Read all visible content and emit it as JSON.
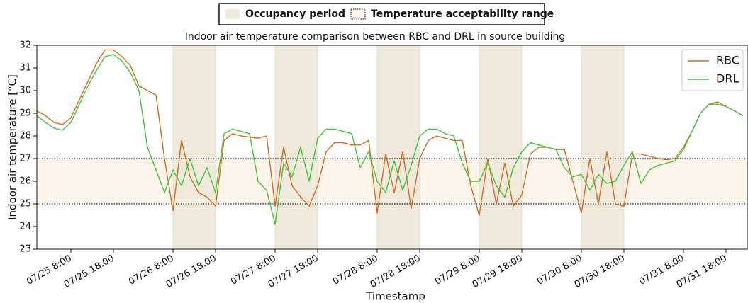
{
  "chart_data": {
    "type": "line",
    "title": "Indoor air temperature comparison between RBC and DRL in source building",
    "x_label": "Timestamp",
    "y_label": "Indoor air temperature [°C]",
    "occupancy_label": "Occupancy period",
    "range_label": "Temperature acceptability range",
    "occupancy_color": "#efeadc",
    "range_color": "#fdf5ea",
    "occupancy": [
      [
        "07/26 8:00",
        "07/26 18:00"
      ],
      [
        "07/27 8:00",
        "07/27 18:00"
      ],
      [
        "07/28 8:00",
        "07/28 18:00"
      ],
      [
        "07/29 8:00",
        "07/29 18:00"
      ],
      [
        "07/30 8:00",
        "07/30 18:00"
      ]
    ],
    "acceptability_range": [
      25,
      27
    ],
    "xlim": [
      "07/25 0:00",
      "07/31 23:00"
    ],
    "xticks": [
      "07/25 8:00",
      "07/25 18:00",
      "07/26 8:00",
      "07/26 18:00",
      "07/27 8:00",
      "07/27 18:00",
      "07/28 8:00",
      "07/28 18:00",
      "07/29 8:00",
      "07/29 18:00",
      "07/30 8:00",
      "07/30 18:00",
      "07/31 8:00",
      "07/31 18:00"
    ],
    "ylim": [
      23,
      32
    ],
    "yticks": [
      23,
      24,
      25,
      26,
      27,
      28,
      29,
      30,
      31,
      32
    ],
    "legend": "upper right",
    "x": [
      "07/25 0:00",
      "07/25 2:00",
      "07/25 4:00",
      "07/25 6:00",
      "07/25 8:00",
      "07/25 10:00",
      "07/25 12:00",
      "07/25 14:00",
      "07/25 16:00",
      "07/25 18:00",
      "07/25 20:00",
      "07/25 22:00",
      "07/26 0:00",
      "07/26 2:00",
      "07/26 4:00",
      "07/26 6:00",
      "07/26 8:00",
      "07/26 10:00",
      "07/26 12:00",
      "07/26 14:00",
      "07/26 16:00",
      "07/26 18:00",
      "07/26 20:00",
      "07/26 22:00",
      "07/27 0:00",
      "07/27 2:00",
      "07/27 4:00",
      "07/27 6:00",
      "07/27 8:00",
      "07/27 10:00",
      "07/27 12:00",
      "07/27 14:00",
      "07/27 16:00",
      "07/27 18:00",
      "07/27 20:00",
      "07/27 22:00",
      "07/28 0:00",
      "07/28 2:00",
      "07/28 4:00",
      "07/28 6:00",
      "07/28 8:00",
      "07/28 10:00",
      "07/28 12:00",
      "07/28 14:00",
      "07/28 16:00",
      "07/28 18:00",
      "07/28 20:00",
      "07/28 22:00",
      "07/29 0:00",
      "07/29 2:00",
      "07/29 4:00",
      "07/29 6:00",
      "07/29 8:00",
      "07/29 10:00",
      "07/29 12:00",
      "07/29 14:00",
      "07/29 16:00",
      "07/29 18:00",
      "07/29 20:00",
      "07/29 22:00",
      "07/30 0:00",
      "07/30 2:00",
      "07/30 4:00",
      "07/30 6:00",
      "07/30 8:00",
      "07/30 10:00",
      "07/30 12:00",
      "07/30 14:00",
      "07/30 16:00",
      "07/30 18:00",
      "07/30 20:00",
      "07/30 22:00",
      "07/31 0:00",
      "07/31 2:00",
      "07/31 4:00",
      "07/31 6:00",
      "07/31 8:00",
      "07/31 10:00",
      "07/31 12:00",
      "07/31 14:00",
      "07/31 16:00",
      "07/31 18:00",
      "07/31 20:00",
      "07/31 22:00"
    ],
    "series": [
      {
        "name": "RBC",
        "color": "#d9691f",
        "values": [
          29.1,
          28.9,
          28.6,
          28.5,
          28.8,
          29.6,
          30.4,
          31.2,
          31.8,
          31.8,
          31.5,
          31.1,
          30.2,
          30.0,
          29.8,
          27.0,
          24.7,
          27.8,
          26.2,
          25.5,
          25.3,
          24.9,
          27.8,
          28.1,
          28.0,
          27.95,
          27.9,
          28.0,
          24.9,
          27.5,
          25.8,
          25.3,
          24.9,
          25.8,
          27.3,
          27.7,
          27.7,
          27.6,
          27.6,
          27.8,
          24.6,
          27.2,
          25.5,
          27.3,
          24.8,
          27.0,
          27.8,
          28.0,
          27.9,
          27.8,
          27.8,
          25.8,
          24.5,
          27.0,
          25.0,
          26.8,
          24.9,
          25.4,
          27.2,
          27.5,
          27.5,
          27.4,
          27.4,
          26.0,
          24.6,
          27.0,
          25.0,
          27.3,
          25.0,
          24.9,
          27.2,
          27.2,
          27.1,
          27.0,
          26.95,
          27.0,
          27.5,
          28.2,
          29.0,
          29.4,
          29.5,
          29.3,
          29.1,
          28.9
        ]
      },
      {
        "name": "DRL",
        "color": "#3ec43e",
        "values": [
          28.9,
          28.6,
          28.35,
          28.25,
          28.6,
          29.4,
          30.2,
          30.9,
          31.5,
          31.6,
          31.3,
          30.8,
          30.0,
          27.5,
          26.5,
          25.5,
          26.5,
          25.8,
          27.0,
          25.8,
          26.6,
          25.5,
          28.1,
          28.3,
          28.2,
          28.1,
          26.0,
          25.6,
          24.1,
          26.8,
          26.2,
          27.5,
          26.0,
          27.9,
          28.3,
          28.3,
          28.2,
          28.1,
          26.6,
          27.3,
          26.0,
          25.5,
          26.9,
          25.6,
          26.7,
          28.0,
          28.3,
          28.3,
          28.1,
          28.0,
          26.8,
          26.0,
          26.0,
          26.8,
          25.8,
          25.3,
          26.6,
          27.3,
          27.7,
          27.6,
          27.5,
          27.4,
          26.6,
          26.2,
          26.3,
          25.6,
          26.3,
          25.9,
          26.0,
          26.7,
          27.3,
          25.9,
          26.5,
          26.7,
          26.8,
          26.9,
          27.4,
          28.2,
          29.0,
          29.4,
          29.4,
          29.3,
          29.1,
          28.9
        ]
      }
    ]
  }
}
